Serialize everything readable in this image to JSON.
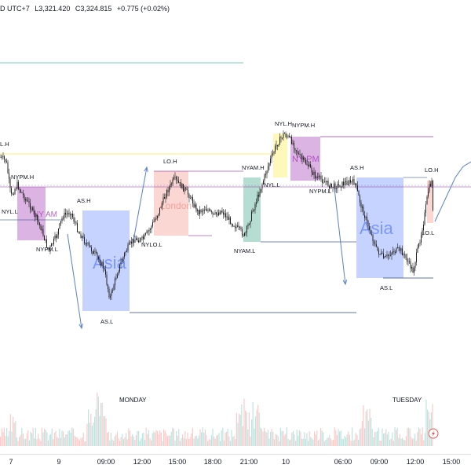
{
  "header": {
    "tz": "D UTC+7",
    "low": "L3,321.420",
    "close": "C3,324.815",
    "change": "+0.775 (+0.02%)"
  },
  "colors": {
    "up": "#26a69a",
    "down": "#ef5350",
    "candle": "#222222",
    "asia": "#5b7fff",
    "london": "#f28b82",
    "nyam": "#2e9e7a",
    "nypm": "#9c27b0",
    "nyl": "#ffeb3b"
  },
  "sessions": [
    {
      "id": "nyam-1",
      "type": "nypm",
      "label": "NY AM"
    },
    {
      "id": "asia-1",
      "type": "asia",
      "label": "Asia"
    },
    {
      "id": "london-1",
      "type": "london",
      "label": "London"
    },
    {
      "id": "nyam-2",
      "type": "nyam",
      "label": ""
    },
    {
      "id": "nyl-1",
      "type": "nyl",
      "label": ""
    },
    {
      "id": "nypm-1",
      "type": "nypm",
      "label": "NY PM"
    },
    {
      "id": "asia-2",
      "type": "asia",
      "label": "Asia"
    },
    {
      "id": "london-2",
      "type": "london",
      "label": ""
    }
  ],
  "level_labels": {
    "l1": "L.H",
    "l2": "NYPM.H",
    "l3": "NYL.L",
    "l4": "NYPM.L",
    "l5": "AS.H",
    "l6": "AS.L",
    "l7": "LO.H",
    "l8": "NYLO.L",
    "l9": "NYAM.H",
    "l10": "NYAM.L",
    "l11": "NYL.H",
    "l12": "NYPM.H",
    "l13": "NYL.L",
    "l14": "NYPM.L",
    "l15": "AS.H",
    "l16": "AS.L",
    "l17": "LO.H",
    "l18": "LO.L"
  },
  "day_labels": {
    "monday": "MONDAY",
    "tuesday": "TUESDAY"
  },
  "xaxis": [
    "7",
    "9",
    "09:00",
    "12:00",
    "15:00",
    "18:00",
    "21:00",
    "10",
    "06:00",
    "09:00",
    "12:00",
    "15:00"
  ],
  "icon": "lightning-icon"
}
